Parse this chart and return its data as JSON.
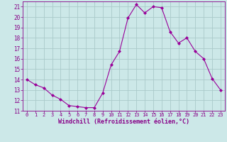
{
  "x": [
    0,
    1,
    2,
    3,
    4,
    5,
    6,
    7,
    8,
    9,
    10,
    11,
    12,
    13,
    14,
    15,
    16,
    17,
    18,
    19,
    20,
    21,
    22,
    23
  ],
  "y": [
    14.0,
    13.5,
    13.2,
    12.5,
    12.1,
    11.5,
    11.4,
    11.3,
    11.3,
    12.7,
    15.4,
    16.7,
    19.9,
    21.2,
    20.4,
    21.0,
    20.9,
    18.6,
    17.5,
    18.0,
    16.7,
    16.0,
    14.1,
    13.0
  ],
  "line_color": "#990099",
  "marker": "D",
  "marker_size": 2,
  "bg_color": "#cce8e8",
  "grid_color": "#aacaca",
  "xlabel": "Windchill (Refroidissement éolien,°C)",
  "xlabel_color": "#880088",
  "tick_color": "#880088",
  "ylim": [
    11,
    21.5
  ],
  "xlim": [
    -0.5,
    23.5
  ],
  "yticks": [
    11,
    12,
    13,
    14,
    15,
    16,
    17,
    18,
    19,
    20,
    21
  ],
  "xticks": [
    0,
    1,
    2,
    3,
    4,
    5,
    6,
    7,
    8,
    9,
    10,
    11,
    12,
    13,
    14,
    15,
    16,
    17,
    18,
    19,
    20,
    21,
    22,
    23
  ]
}
